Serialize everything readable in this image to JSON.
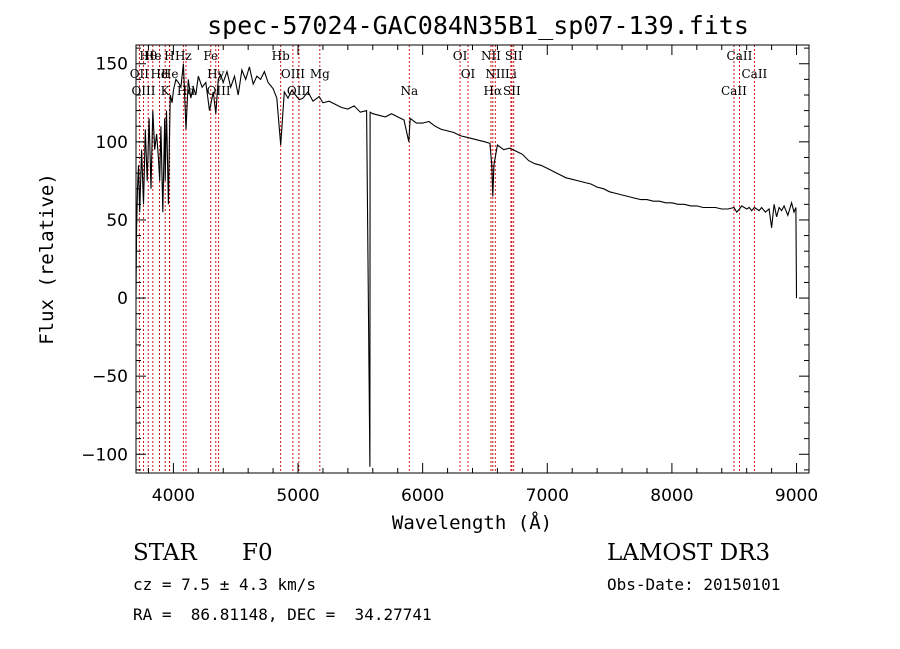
{
  "chart_data": {
    "type": "line",
    "title": "spec-57024-GAC084N35B1_sp07-139.fits",
    "xlabel": "Wavelength (Å)",
    "ylabel": "Flux (relative)",
    "xlim": [
      3700,
      9100
    ],
    "ylim": [
      -112,
      162
    ],
    "xticks": [
      4000,
      5000,
      6000,
      7000,
      8000,
      9000
    ],
    "xtick_labels": [
      "4000",
      "5000",
      "6000",
      "7000",
      "8000",
      "9000"
    ],
    "yticks": [
      -100,
      -50,
      0,
      50,
      100,
      150
    ],
    "ytick_labels": [
      "−100",
      "−50",
      "0",
      "50",
      "100",
      "150"
    ],
    "grid": false,
    "series": [
      {
        "name": "spectrum",
        "x": [
          3700,
          3705,
          3712,
          3720,
          3730,
          3745,
          3760,
          3775,
          3790,
          3805,
          3820,
          3835,
          3850,
          3865,
          3880,
          3890,
          3900,
          3915,
          3930,
          3934,
          3945,
          3960,
          3968,
          3975,
          3990,
          4000,
          4020,
          4040,
          4060,
          4080,
          4101,
          4120,
          4140,
          4160,
          4180,
          4200,
          4230,
          4260,
          4290,
          4320,
          4340,
          4360,
          4380,
          4400,
          4430,
          4460,
          4490,
          4520,
          4550,
          4580,
          4610,
          4640,
          4670,
          4700,
          4730,
          4760,
          4800,
          4830,
          4861,
          4890,
          4920,
          4950,
          4980,
          5010,
          5040,
          5080,
          5120,
          5170,
          5200,
          5250,
          5300,
          5350,
          5400,
          5450,
          5500,
          5550,
          5577,
          5578,
          5600,
          5650,
          5700,
          5750,
          5800,
          5850,
          5889,
          5900,
          5950,
          6000,
          6050,
          6100,
          6150,
          6200,
          6250,
          6300,
          6350,
          6400,
          6450,
          6500,
          6540,
          6555,
          6563,
          6572,
          6600,
          6650,
          6700,
          6750,
          6800,
          6850,
          6900,
          6950,
          7000,
          7050,
          7100,
          7150,
          7200,
          7250,
          7300,
          7350,
          7400,
          7450,
          7500,
          7550,
          7600,
          7650,
          7700,
          7750,
          7800,
          7850,
          7900,
          7950,
          8000,
          8050,
          8100,
          8150,
          8200,
          8250,
          8300,
          8350,
          8400,
          8450,
          8498,
          8520,
          8542,
          8560,
          8600,
          8620,
          8640,
          8662,
          8680,
          8700,
          8720,
          8750,
          8780,
          8800,
          8820,
          8840,
          8860,
          8880,
          8900,
          8930,
          8960,
          8980,
          8995,
          9000
        ],
        "values": [
          2,
          45,
          70,
          85,
          55,
          95,
          60,
          108,
          75,
          115,
          70,
          120,
          95,
          105,
          90,
          75,
          110,
          55,
          115,
          75,
          120,
          60,
          100,
          130,
          125,
          133,
          140,
          138,
          135,
          150,
          108,
          140,
          128,
          135,
          130,
          142,
          135,
          138,
          120,
          132,
          118,
          140,
          143,
          138,
          145,
          135,
          142,
          130,
          146,
          140,
          148,
          137,
          142,
          140,
          145,
          138,
          134,
          128,
          98,
          132,
          128,
          133,
          130,
          127,
          128,
          132,
          126,
          129,
          125,
          126,
          124,
          122,
          121,
          123,
          119,
          120,
          -108,
          119,
          118,
          117,
          116,
          118,
          116,
          114,
          100,
          115,
          112,
          112,
          113,
          110,
          108,
          107,
          106,
          104,
          103,
          102,
          101,
          100,
          99,
          85,
          65,
          85,
          98,
          95,
          96,
          94,
          92,
          88,
          86,
          85,
          83,
          81,
          79,
          77,
          76,
          75,
          74,
          73,
          71,
          70,
          68,
          67,
          66,
          65,
          64,
          63,
          63,
          62,
          62,
          61,
          61,
          60,
          60,
          59,
          59,
          58,
          58,
          58,
          57,
          57,
          58,
          55,
          57,
          59,
          57,
          58,
          56,
          58,
          57,
          56,
          58,
          55,
          57,
          45,
          60,
          52,
          58,
          56,
          59,
          53,
          61,
          55,
          58,
          0
        ]
      }
    ],
    "emission_lines": [
      {
        "label": "Hθ",
        "x": 3798
      },
      {
        "label": "OII",
        "x": 3727
      },
      {
        "label": "OIII",
        "x": 3760
      },
      {
        "label": "He",
        "x": 3835
      },
      {
        "label": "Hd",
        "x": 3889
      },
      {
        "label": "K",
        "x": 3934
      },
      {
        "label": "H",
        "x": 3968
      },
      {
        "label": "He",
        "x": 3970
      },
      {
        "label": "Hd",
        "x": 4101
      },
      {
        "label": "Hz",
        "x": 4080
      },
      {
        "label": "Hy",
        "x": 4340
      },
      {
        "label": "OIII",
        "x": 4363
      },
      {
        "label": "Fe",
        "x": 4300
      },
      {
        "label": "OIII",
        "x": 4959
      },
      {
        "label": "OIII",
        "x": 5007
      },
      {
        "label": "Hb",
        "x": 4861
      },
      {
        "label": "Mg",
        "x": 5175
      },
      {
        "label": "Na",
        "x": 5893
      },
      {
        "label": "OI",
        "x": 6300
      },
      {
        "label": "OI",
        "x": 6364
      },
      {
        "label": "Hα",
        "x": 6563
      },
      {
        "label": "NII",
        "x": 6548
      },
      {
        "label": "NII",
        "x": 6583
      },
      {
        "label": "SII",
        "x": 6716
      },
      {
        "label": "SII",
        "x": 6731
      },
      {
        "label": "Li",
        "x": 6708
      },
      {
        "label": "CaII",
        "x": 8498
      },
      {
        "label": "CaII",
        "x": 8542
      },
      {
        "label": "CaII",
        "x": 8662
      }
    ],
    "line_color": "#000000",
    "marker_color": "#cc0000"
  },
  "info": {
    "object_type": "STAR",
    "subclass": "F0",
    "survey": "LAMOST DR3",
    "redshift": "cz = 7.5 ± 4.3 km/s",
    "obs_date": "Obs-Date: 20150101",
    "coords": "RA =  86.81148, DEC =  34.27741"
  }
}
